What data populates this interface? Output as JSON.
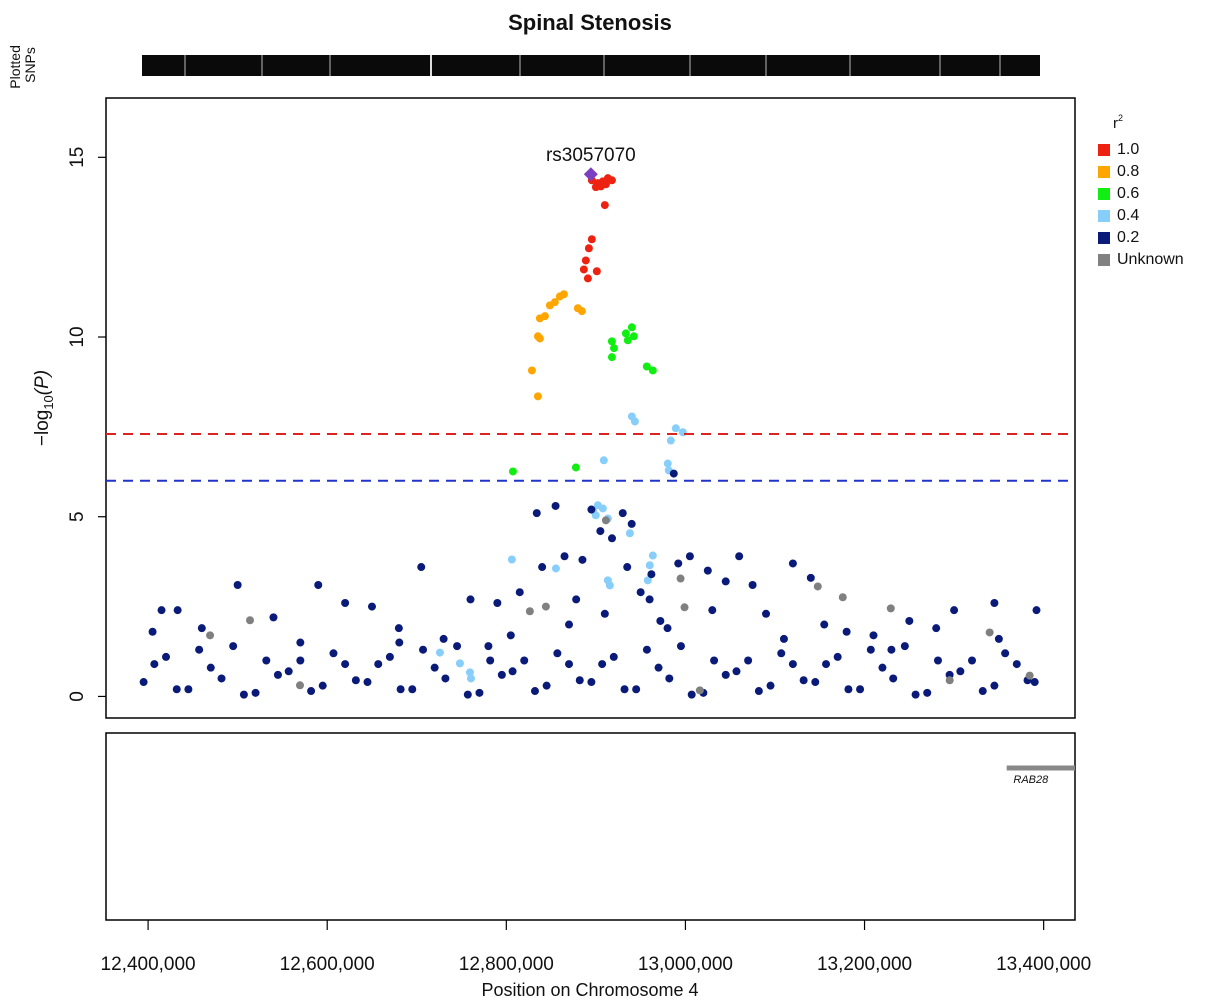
{
  "chart_data": {
    "type": "scatter",
    "title": "Spinal Stenosis",
    "track_label": [
      "Plotted",
      "SNPs"
    ],
    "x_label": "Position on Chromosome 4",
    "y_label": {
      "main": "−log",
      "sub": "10",
      "arg": "(P)"
    },
    "xlim": [
      12353000,
      13435000
    ],
    "ylim": [
      -0.6,
      16.65
    ],
    "xticks": [
      {
        "value": 12400000,
        "label": "12,400,000"
      },
      {
        "value": 12600000,
        "label": "12,600,000"
      },
      {
        "value": 12800000,
        "label": "12,800,000"
      },
      {
        "value": 13000000,
        "label": "13,000,000"
      },
      {
        "value": 13200000,
        "label": "13,200,000"
      },
      {
        "value": 13400000,
        "label": "13,400,000"
      }
    ],
    "yticks": [
      0,
      5,
      10,
      15
    ],
    "legend_title": {
      "base": "r",
      "sup": "2"
    },
    "legend": "right",
    "hlines": [
      {
        "value": 7.3,
        "color": "#dd2222"
      },
      {
        "value": 6,
        "color": "#2233cc"
      }
    ],
    "lead_snp": {
      "label": "rs3057070",
      "x": 12894400,
      "y": 14.53,
      "color": "#7b3fc4"
    },
    "genes": [
      {
        "name": "RAB28",
        "start": 13358700,
        "end": 13435000,
        "color": "#888888"
      }
    ],
    "series": [
      {
        "name": "1.0",
        "color": "#ee2211",
        "x": [
          12895500,
          12902200,
          12907800,
          12913400,
          12917900,
          12900000,
          12905600,
          12911200,
          12910000,
          12895500,
          12892200,
          12888800,
          12886600,
          12891100,
          12901100
        ],
        "values": [
          14.36,
          14.28,
          14.33,
          14.42,
          14.36,
          14.17,
          14.19,
          14.25,
          13.67,
          12.72,
          12.47,
          12.13,
          11.88,
          11.63,
          11.83
        ]
      },
      {
        "name": "0.8",
        "color": "#ffa500",
        "x": [
          12828600,
          12835300,
          12835300,
          12837500,
          12843100,
          12848700,
          12854200,
          12859800,
          12864300,
          12879900,
          12884400,
          12837500
        ],
        "values": [
          9.07,
          8.35,
          10.02,
          10.52,
          10.58,
          10.88,
          10.97,
          11.13,
          11.19,
          10.8,
          10.72,
          9.96
        ]
      },
      {
        "name": "0.6",
        "color": "#11ee11",
        "x": [
          12807400,
          12877700,
          12917900,
          12920200,
          12917900,
          12935700,
          12940200,
          12942400,
          12956900,
          12963600,
          12933500
        ],
        "values": [
          6.26,
          6.37,
          9.88,
          9.69,
          9.44,
          9.91,
          10.27,
          10.02,
          9.18,
          9.07,
          10.1
        ]
      },
      {
        "name": "0.4",
        "color": "#87cefa",
        "x": [
          12940200,
          12943600,
          12989300,
          12997100,
          12983700,
          12980300,
          12981400,
          12908900,
          12896700,
          12902200,
          12907800,
          12899900,
          12913400,
          12806200,
          12855400,
          12913400,
          12915600,
          12960200,
          12963600,
          12958000,
          12725900,
          12748200,
          12759400,
          12760500,
          12938000
        ],
        "values": [
          7.79,
          7.65,
          7.46,
          7.35,
          7.12,
          6.48,
          6.29,
          6.57,
          5.18,
          5.32,
          5.23,
          5.04,
          4.95,
          3.81,
          3.56,
          3.23,
          3.09,
          3.65,
          3.92,
          3.23,
          1.22,
          0.92,
          0.67,
          0.5,
          4.54
        ]
      },
      {
        "name": "0.2",
        "color": "#0a1a78",
        "x": [
          12395000,
          12420000,
          12445000,
          12470000,
          12495000,
          12520000,
          12545000,
          12570000,
          12595000,
          12620000,
          12645000,
          12670000,
          12695000,
          12720000,
          12745000,
          12770000,
          12795000,
          12820000,
          12845000,
          12870000,
          12895000,
          12920000,
          12945000,
          12970000,
          12995000,
          13020000,
          13045000,
          13070000,
          13095000,
          13120000,
          13145000,
          13170000,
          13195000,
          13220000,
          13245000,
          13270000,
          13295000,
          13320000,
          13345000,
          13370000,
          13390000,
          12407000,
          12432000,
          12457000,
          12482000,
          12507000,
          12532000,
          12557000,
          12582000,
          12607000,
          12632000,
          12657000,
          12682000,
          12707000,
          12732000,
          12757000,
          12782000,
          12807000,
          12832000,
          12857000,
          12882000,
          12907000,
          12932000,
          12957000,
          12982000,
          13007000,
          13032000,
          13057000,
          13082000,
          13107000,
          13132000,
          13157000,
          13182000,
          13207000,
          13232000,
          13257000,
          13282000,
          13307000,
          13332000,
          13357000,
          13382000,
          12405000,
          12415000,
          12433000,
          12500000,
          12590000,
          12705000,
          12540000,
          12620000,
          12650000,
          12680000,
          12760000,
          12790000,
          12815000,
          12834000,
          12855000,
          12865000,
          12840000,
          12878000,
          12885000,
          12895000,
          12905000,
          12918000,
          12930000,
          12940000,
          12935000,
          12950000,
          12962000,
          12972000,
          12987000,
          12992000,
          13005000,
          13025000,
          13045000,
          13060000,
          13075000,
          13090000,
          13120000,
          13140000,
          13155000,
          13180000,
          13210000,
          13250000,
          13300000,
          13345000,
          13392000,
          12980000,
          12960000,
          12910000,
          12870000,
          12805000,
          12780000,
          12730000,
          12680500,
          12570000,
          12460000,
          13350000,
          13280000,
          13230000,
          13110000,
          13030000
        ],
        "values": [
          0.4,
          1.1,
          0.2,
          0.8,
          1.4,
          0.1,
          0.6,
          1.0,
          0.3,
          0.9,
          0.4,
          1.1,
          0.2,
          0.8,
          1.4,
          0.1,
          0.6,
          1.0,
          0.3,
          0.9,
          0.4,
          1.1,
          0.2,
          0.8,
          1.4,
          0.1,
          0.6,
          1.0,
          0.3,
          0.9,
          0.4,
          1.1,
          0.2,
          0.8,
          1.4,
          0.1,
          0.6,
          1.0,
          0.3,
          0.9,
          0.4,
          0.9,
          0.2,
          1.3,
          0.5,
          0.05,
          1.0,
          0.7,
          0.15,
          1.2,
          0.45,
          0.9,
          0.2,
          1.3,
          0.5,
          0.05,
          1.0,
          0.7,
          0.15,
          1.2,
          0.45,
          0.9,
          0.2,
          1.3,
          0.5,
          0.05,
          1.0,
          0.7,
          0.15,
          1.2,
          0.45,
          0.9,
          0.2,
          1.3,
          0.5,
          0.05,
          1.0,
          0.7,
          0.15,
          1.2,
          0.45,
          1.8,
          2.4,
          2.4,
          3.1,
          3.1,
          3.6,
          2.2,
          2.6,
          2.5,
          1.9,
          2.7,
          2.6,
          2.9,
          5.1,
          5.3,
          3.9,
          3.6,
          2.7,
          3.8,
          5.2,
          4.6,
          4.4,
          5.1,
          4.8,
          3.6,
          2.9,
          3.4,
          2.1,
          6.2,
          3.7,
          3.9,
          3.5,
          3.2,
          3.9,
          3.1,
          2.3,
          3.7,
          3.3,
          2.0,
          1.8,
          1.7,
          2.1,
          2.4,
          2.6,
          2.4,
          1.9,
          2.7,
          2.3,
          2.0,
          1.7,
          1.4,
          1.6,
          1.5,
          1.5,
          1.9,
          1.6,
          1.9,
          1.3,
          1.6,
          2.4
        ]
      },
      {
        "name": "Unknown",
        "color": "#808080",
        "x": [
          12911200,
          12999000,
          12994600,
          12826300,
          12844200,
          12469200,
          12513800,
          13147800,
          13175700,
          13229300,
          13339700,
          12569600,
          13016100,
          13295100,
          13384400
        ],
        "values": [
          4.9,
          2.48,
          3.28,
          2.37,
          2.5,
          1.7,
          2.12,
          3.06,
          2.76,
          2.45,
          1.78,
          0.31,
          0.17,
          0.45,
          0.58
        ]
      }
    ]
  }
}
